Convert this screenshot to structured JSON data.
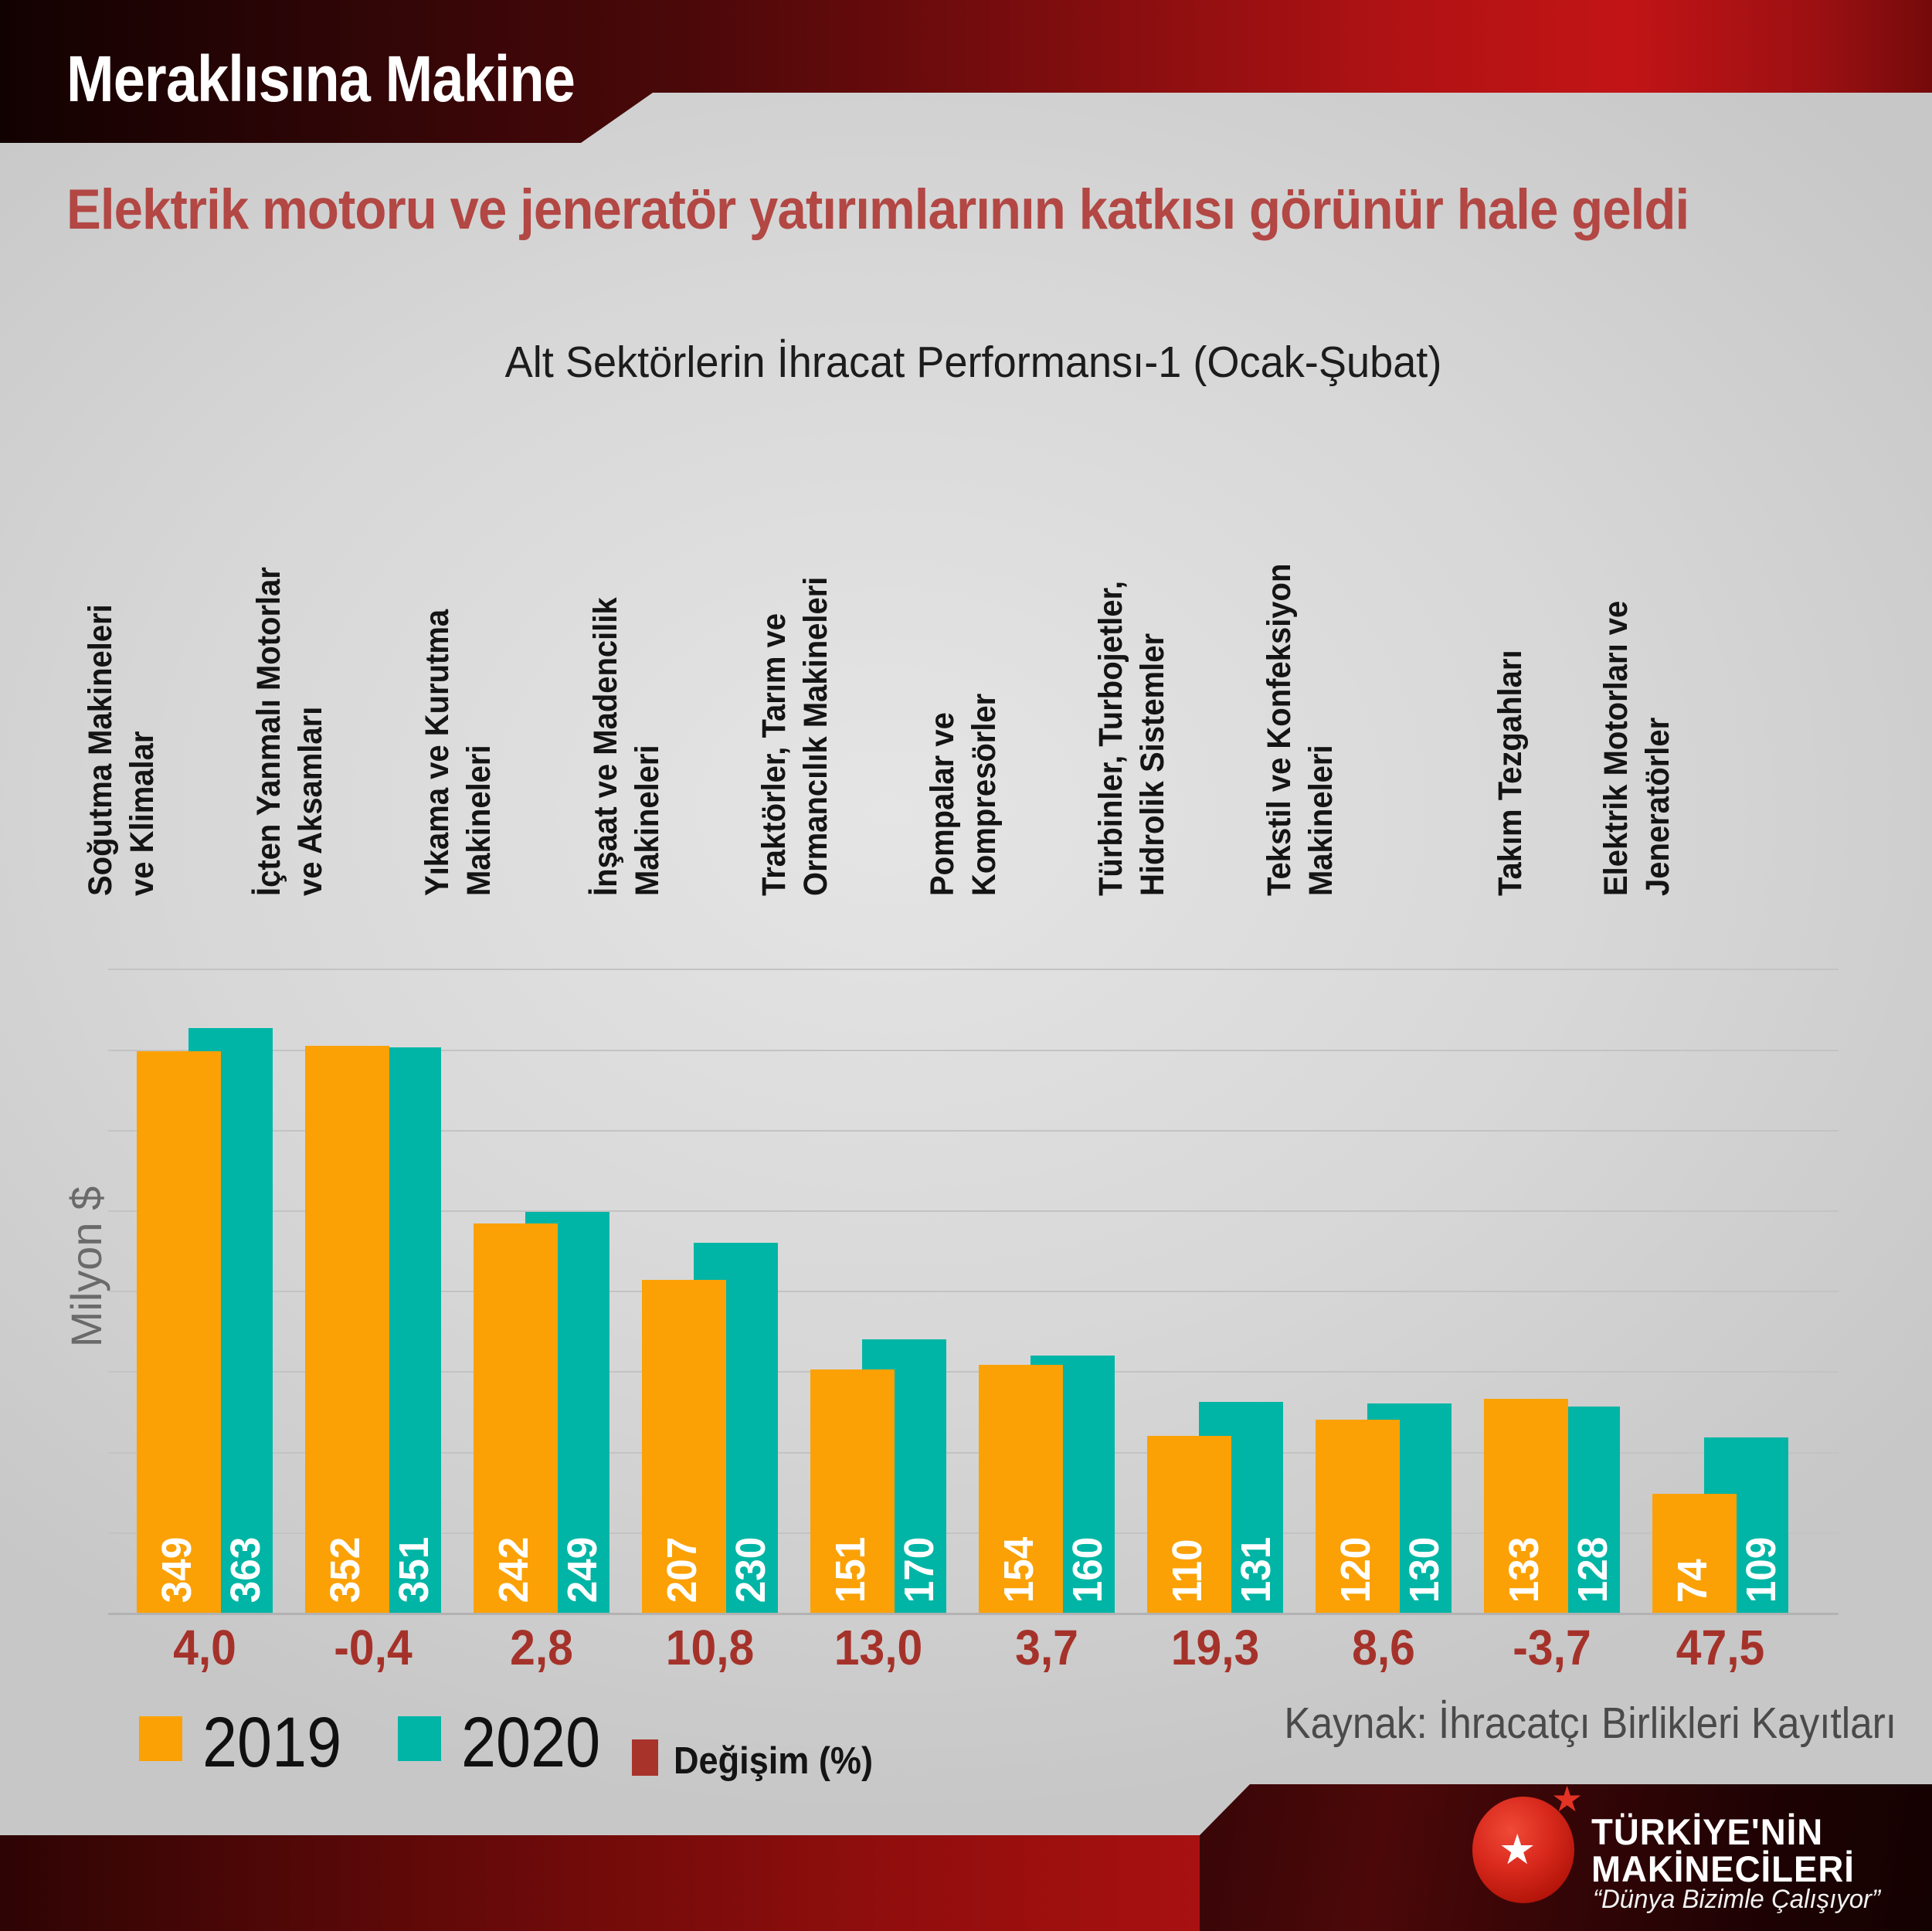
{
  "header": {
    "title": "Meraklısına Makine"
  },
  "headline": "Elektrik motoru ve jeneratör yatırımlarının katkısı görünür hale geldi",
  "chart_data": {
    "type": "bar",
    "title": "Alt Sektörlerin İhracat Performansı-1 (Ocak-Şubat)",
    "ylabel": "Milyon $",
    "xlabel": "",
    "ylim": [
      0,
      400
    ],
    "gridline_step": 50,
    "grid": true,
    "legend_position": "bottom-left",
    "categories": [
      "Soğutma Makineleri ve Klimalar",
      "İçten Yanmalı Motorlar ve Aksamları",
      "Yıkama ve Kurutma Makineleri",
      "İnşaat ve Madencilik Makineleri",
      "Traktörler, Tarım ve Ormancılık Makineleri",
      "Pompalar ve Kompresörler",
      "Türbinler, Turbojetler, Hidrolik Sistemler",
      "Tekstil ve Konfeksiyon Makineleri",
      "Takım Tezgahları",
      "Elektrik Motorları ve Jeneratörler"
    ],
    "category_lines": [
      [
        "Soğutma Makineleri",
        "ve Klimalar"
      ],
      [
        "İçten Yanmalı Motorlar",
        "ve Aksamları"
      ],
      [
        "Yıkama ve Kurutma",
        "Makineleri"
      ],
      [
        "İnşaat ve Madencilik",
        "Makineleri"
      ],
      [
        "Traktörler, Tarım ve",
        "Ormancılık Makineleri"
      ],
      [
        "Pompalar ve",
        "Kompresörler"
      ],
      [
        "Türbinler, Turbojetler,",
        "Hidrolik Sistemler"
      ],
      [
        "Tekstil ve Konfeksiyon",
        "Makineleri"
      ],
      [
        "Takım Tezgahları"
      ],
      [
        "Elektrik Motorları ve",
        "Jeneratörler"
      ]
    ],
    "series": [
      {
        "name": "2019",
        "values": [
          349,
          352,
          242,
          207,
          151,
          154,
          110,
          120,
          133,
          74
        ]
      },
      {
        "name": "2020",
        "values": [
          363,
          351,
          249,
          230,
          170,
          160,
          131,
          130,
          128,
          109
        ]
      }
    ],
    "change_series": {
      "name": "Değişim (%)",
      "values": [
        "4,0",
        "-0,4",
        "2,8",
        "10,8",
        "13,0",
        "3,7",
        "19,3",
        "8,6",
        "-3,7",
        "47,5"
      ]
    }
  },
  "legend": {
    "items": [
      {
        "label": "2019",
        "color": "#fba105"
      },
      {
        "label": "2020",
        "color": "#00b5a5"
      },
      {
        "label": "Değişim (%)",
        "color": "#a8332b"
      }
    ]
  },
  "source": "Kaynak: İhracatçı Birlikleri Kayıtları",
  "logo": {
    "brand_line1": "TÜRKİYE'NİN",
    "brand_line2": "MAKİNECİLERİ",
    "tagline": "“Dünya Bizimle Çalışıyor”"
  },
  "colors": {
    "bar_2019": "#fba105",
    "bar_2020": "#00b5a5",
    "change_text": "#a5322a",
    "headline_text": "#b24744",
    "header_band_red": "#c21416",
    "background": "#d7d7d7",
    "gridline": "#c3c3c3",
    "logo_red": "#d92a1d"
  }
}
